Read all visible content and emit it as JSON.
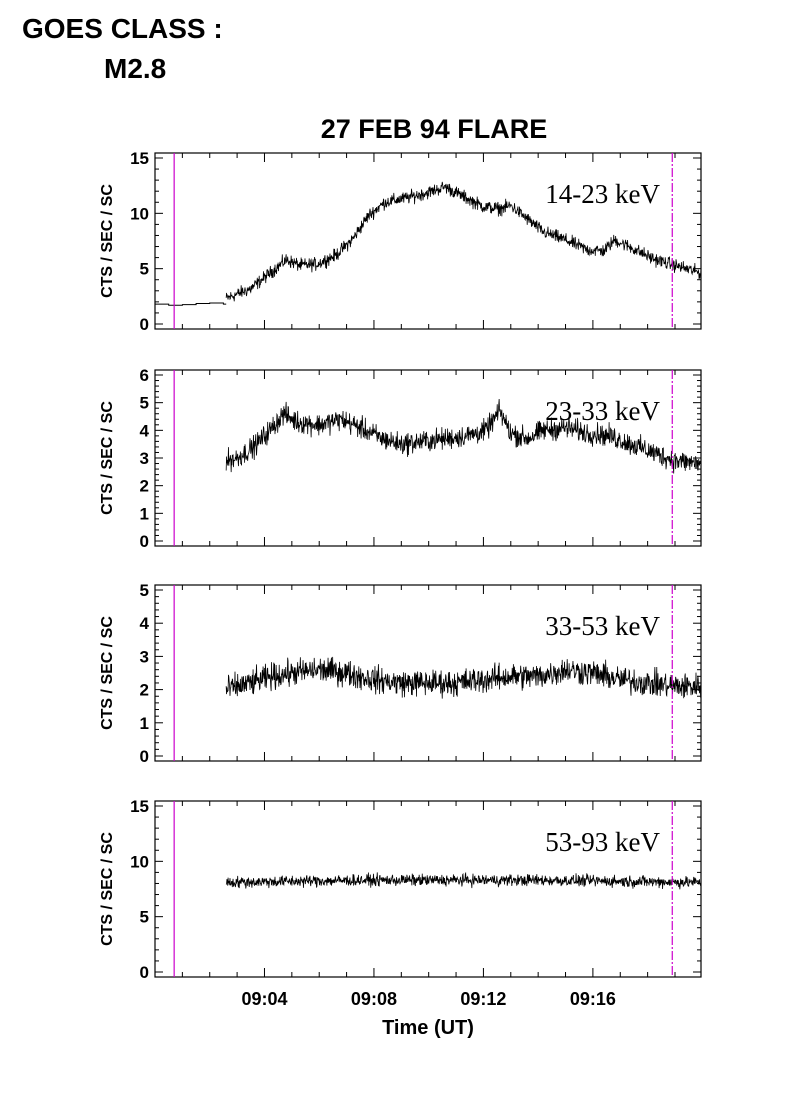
{
  "header": {
    "goes_line1": "GOES CLASS :",
    "goes_line2": "M2.8"
  },
  "chart_data": {
    "type": "line",
    "title": "27 FEB 94 FLARE",
    "xlabel": "Time (UT)",
    "x_units": "minutes after 09:00 UT",
    "xlim": [
      0.0,
      19.95
    ],
    "x_ticks": [
      "09:04",
      "09:08",
      "09:12",
      "09:16"
    ],
    "grid": false,
    "colors": {
      "trace": "#000000",
      "marker_line": "#cc00cc"
    },
    "markers": [
      0.7,
      18.9
    ],
    "panels": [
      {
        "label": "14-23 keV",
        "ylabel": "CTS / SEC / SC",
        "ylim": [
          0,
          15
        ],
        "yticks": [
          "0",
          "5",
          "10",
          "15"
        ],
        "start": 0.0,
        "end": 19.95,
        "pre_flare_step": {
          "x": [
            0,
            0.5,
            1,
            1.5,
            2,
            2.5
          ],
          "y": [
            1.8,
            1.7,
            1.75,
            1.85,
            1.9,
            1.8
          ]
        },
        "noise": 0.45,
        "series": {
          "x": [
            2.6,
            3.5,
            4.2,
            4.8,
            5.3,
            5.9,
            6.6,
            7.2,
            7.8,
            8.4,
            9.2,
            10.0,
            10.6,
            11.2,
            12.0,
            12.6,
            13.0,
            13.6,
            14.2,
            15.0,
            15.8,
            16.4,
            16.8,
            17.4,
            18.2,
            19.0,
            19.95
          ],
          "y": [
            2.3,
            3.2,
            4.6,
            5.8,
            5.3,
            5.4,
            6.2,
            7.6,
            9.8,
            11.0,
            11.4,
            11.9,
            12.4,
            11.6,
            10.6,
            10.4,
            10.7,
            9.5,
            8.3,
            7.6,
            6.7,
            6.6,
            7.6,
            6.9,
            5.9,
            5.3,
            4.6
          ]
        }
      },
      {
        "label": "23-33 keV",
        "ylabel": "CTS / SEC / SC",
        "ylim": [
          0,
          6
        ],
        "yticks": [
          "0",
          "1",
          "2",
          "3",
          "4",
          "5",
          "6"
        ],
        "start": 2.55,
        "end": 19.95,
        "noise": 0.3,
        "series": {
          "x": [
            2.6,
            3.0,
            3.6,
            4.2,
            4.7,
            5.2,
            6.0,
            6.8,
            7.5,
            8.3,
            9.0,
            9.8,
            10.6,
            11.4,
            12.1,
            12.6,
            13.0,
            13.6,
            14.2,
            15.0,
            15.8,
            16.6,
            17.4,
            18.2,
            19.0,
            19.95
          ],
          "y": [
            2.9,
            3.0,
            3.4,
            4.0,
            4.6,
            4.3,
            4.2,
            4.4,
            4.1,
            3.7,
            3.5,
            3.6,
            3.7,
            3.8,
            4.0,
            4.7,
            3.9,
            3.7,
            4.0,
            4.1,
            3.9,
            3.8,
            3.5,
            3.2,
            2.9,
            2.8
          ]
        }
      },
      {
        "label": "33-53 keV",
        "ylabel": "CTS / SEC / SC",
        "ylim": [
          0,
          5
        ],
        "yticks": [
          "0",
          "1",
          "2",
          "3",
          "4",
          "5"
        ],
        "start": 2.55,
        "end": 19.95,
        "noise": 0.3,
        "series": {
          "x": [
            2.6,
            3.5,
            4.3,
            5.0,
            6.0,
            7.0,
            8.0,
            9.0,
            10.0,
            11.0,
            12.0,
            13.0,
            14.0,
            15.0,
            16.0,
            17.0,
            18.0,
            19.0,
            19.95
          ],
          "y": [
            2.0,
            2.2,
            2.4,
            2.5,
            2.6,
            2.5,
            2.3,
            2.2,
            2.2,
            2.2,
            2.3,
            2.4,
            2.4,
            2.6,
            2.5,
            2.3,
            2.2,
            2.1,
            2.1
          ]
        }
      },
      {
        "label": "53-93 keV",
        "ylabel": "CTS / SEC / SC",
        "ylim": [
          0,
          15
        ],
        "yticks": [
          "0",
          "5",
          "10",
          "15"
        ],
        "start": 2.55,
        "end": 19.95,
        "noise": 0.4,
        "series": {
          "x": [
            2.6,
            5.0,
            8.0,
            11.0,
            14.0,
            17.0,
            19.95
          ],
          "y": [
            8.1,
            8.2,
            8.3,
            8.3,
            8.3,
            8.2,
            8.1
          ]
        }
      }
    ]
  }
}
